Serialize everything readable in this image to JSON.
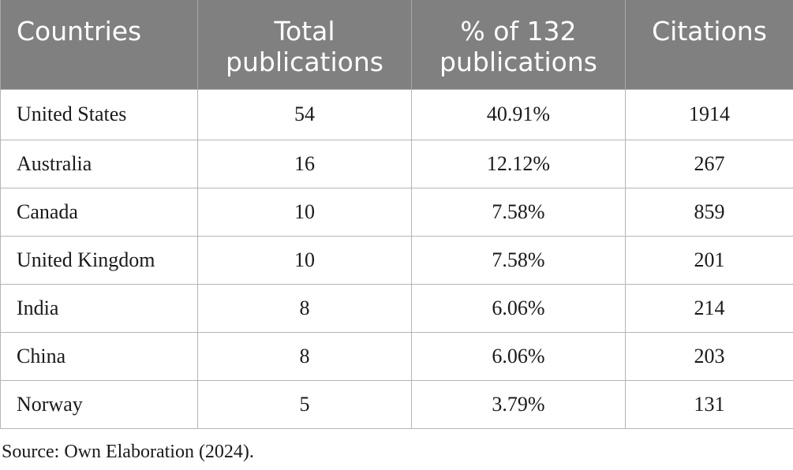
{
  "table": {
    "columns": [
      "Countries",
      "Total publications",
      "% of 132 publications",
      "Citations"
    ],
    "rows": [
      [
        "United States",
        "54",
        "40.91%",
        "1914"
      ],
      [
        "Australia",
        "16",
        "12.12%",
        "267"
      ],
      [
        "Canada",
        "10",
        "7.58%",
        "859"
      ],
      [
        "United Kingdom",
        "10",
        "7.58%",
        "201"
      ],
      [
        "India",
        "8",
        "6.06%",
        "214"
      ],
      [
        "China",
        "8",
        "6.06%",
        "203"
      ],
      [
        "Norway",
        "5",
        "3.79%",
        "131"
      ]
    ]
  },
  "footnote": "Source: Own Elaboration (2024)."
}
